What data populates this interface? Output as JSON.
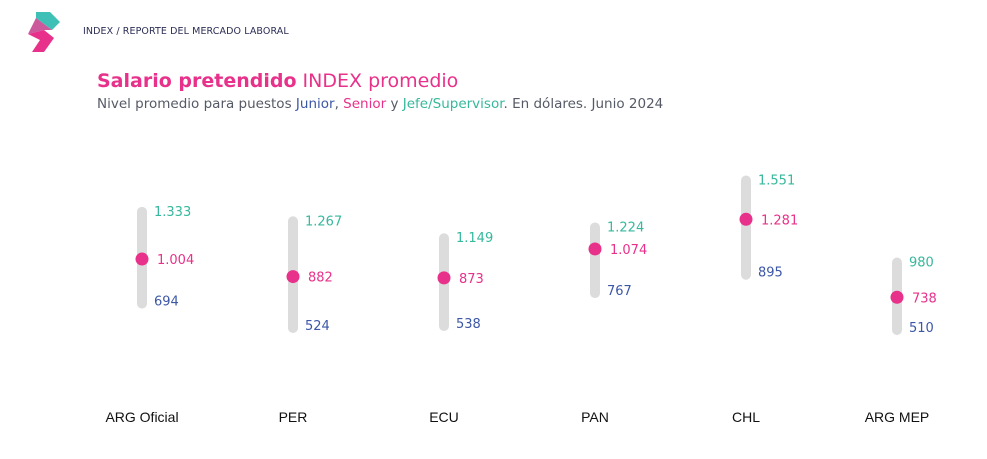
{
  "header": {
    "breadcrumb": "INDEX / REPORTE DEL MERCADO LABORAL",
    "title_bold": "Salario pretendido",
    "title_rest": " INDEX promedio",
    "subtitle": {
      "prefix": "Nivel promedio para puestos ",
      "junior": "Junior",
      "sep1": ", ",
      "senior": "Senior",
      "sep2": " y ",
      "jefe": "Jefe/Supervisor",
      "suffix": ". En dólares. Junio 2024"
    }
  },
  "colors": {
    "junior": "#3d57a7",
    "senior": "#e8318a",
    "jefe": "#36b89c",
    "bar": "#dcdcdc",
    "logo_teal": "#3fc0b6",
    "logo_pink": "#e8318a"
  },
  "chart_data": {
    "type": "range-dot",
    "categories": [
      "ARG Oficial",
      "PER",
      "ECU",
      "PAN",
      "CHL",
      "ARG MEP"
    ],
    "series": [
      {
        "name": "Junior",
        "values": [
          694,
          524,
          538,
          767,
          895,
          510
        ],
        "labels": [
          "694",
          "524",
          "538",
          "767",
          "895",
          "510"
        ]
      },
      {
        "name": "Senior",
        "values": [
          1004,
          882,
          873,
          1074,
          1281,
          738
        ],
        "labels": [
          "1.004",
          "882",
          "873",
          "1.074",
          "1.281",
          "738"
        ]
      },
      {
        "name": "Jefe/Supervisor",
        "values": [
          1333,
          1267,
          1149,
          1224,
          1551,
          980
        ],
        "labels": [
          "1.333",
          "1.267",
          "1.149",
          "1.224",
          "1.551",
          "980"
        ]
      }
    ],
    "grid": false,
    "legend": "none"
  }
}
